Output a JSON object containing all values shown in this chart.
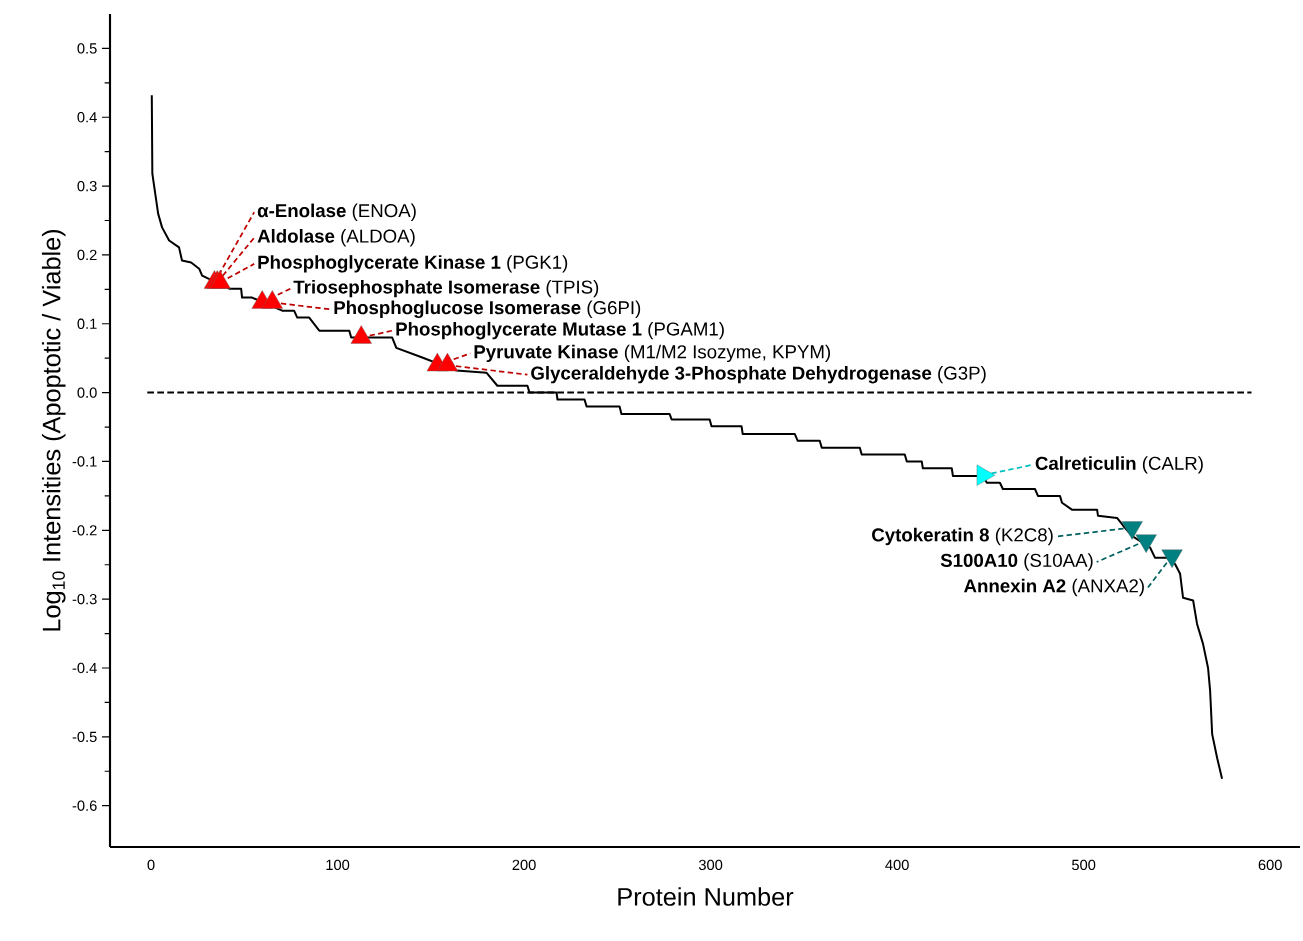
{
  "chart_data": {
    "type": "line",
    "xlabel": "Protein Number",
    "ylabel": "Log$_{10}$ Intensities (Apoptotic / Viable)",
    "xlim": [
      -22,
      616
    ],
    "ylim": [
      -0.66,
      0.55
    ],
    "xticks": [
      0,
      100,
      200,
      300,
      400,
      500,
      600
    ],
    "yticks": [
      0.5,
      0.4,
      0.3,
      0.2,
      0.1,
      {
        "value": 0,
        "label": "0.0"
      },
      -0.1,
      -0.2,
      -0.3,
      -0.4,
      -0.5,
      -0.6
    ],
    "series": [
      {
        "color": "#000000",
        "line_style": "dashed",
        "marker": "none",
        "x": [
          -2,
          590
        ],
        "values": [
          0,
          0
        ]
      },
      {
        "color": "#000000",
        "line_style": "solid",
        "marker": "none",
        "x": [
          0.4,
          0.7,
          3.8,
          5.9,
          9.7,
          15.0,
          16.6,
          21.5,
          25.8,
          27.4,
          41.9,
          48.3,
          48.8,
          54.2,
          70.3,
          76.7,
          78.4,
          84.8,
          90.2,
          106.3,
          107.3,
          129.3,
          131.5,
          145.4,
          163.7,
          179.8,
          185.7,
          201.8,
          202.9,
          217.4,
          217.9,
          232.4,
          233.5,
          251.2,
          252.2,
          278.0,
          279.1,
          299.5,
          300.5,
          316.6,
          317.2,
          345.1,
          346.7,
          358.5,
          359.6,
          380.0,
          381.0,
          404.1,
          405.2,
          413.2,
          413.8,
          429.3,
          429.9,
          446.0,
          448.1,
          455.1,
          456.7,
          473.9,
          475.5,
          487.3,
          488.4,
          493.7,
          507.2,
          507.7,
          517.9,
          521.1,
          525.9,
          535.6,
          538.3,
          544.7,
          549.0,
          551.7,
          553.3,
          558.7,
          560.8,
          564.0,
          566.7,
          567.8,
          568.9,
          571.6,
          574.2
        ],
        "values": [
          0.432,
          0.318,
          0.26,
          0.24,
          0.221,
          0.211,
          0.192,
          0.189,
          0.18,
          0.17,
          0.151,
          0.151,
          0.138,
          0.138,
          0.119,
          0.119,
          0.109,
          0.109,
          0.09,
          0.09,
          0.08,
          0.08,
          0.065,
          0.051,
          0.032,
          0.029,
          0.01,
          0.01,
          0.0,
          0.0,
          -0.01,
          -0.01,
          -0.02,
          -0.02,
          -0.031,
          -0.031,
          -0.039,
          -0.039,
          -0.049,
          -0.049,
          -0.06,
          -0.06,
          -0.07,
          -0.07,
          -0.08,
          -0.08,
          -0.09,
          -0.09,
          -0.1,
          -0.1,
          -0.11,
          -0.11,
          -0.121,
          -0.121,
          -0.131,
          -0.131,
          -0.14,
          -0.14,
          -0.15,
          -0.15,
          -0.16,
          -0.17,
          -0.17,
          -0.179,
          -0.182,
          -0.193,
          -0.208,
          -0.225,
          -0.24,
          -0.24,
          -0.249,
          -0.263,
          -0.298,
          -0.302,
          -0.336,
          -0.365,
          -0.4,
          -0.433,
          -0.496,
          -0.531,
          -0.561
        ]
      },
      {
        "type": "scatter",
        "color": "#ff0000",
        "marker": "triangle",
        "x": [
          34,
          35.5,
          37,
          59.6,
          65,
          112.7,
          153.5,
          158.9
        ],
        "values": [
          0.16,
          0.16,
          0.16,
          0.131,
          0.131,
          0.08,
          0.04,
          0.04
        ]
      },
      {
        "type": "scatter",
        "color": "#00ffff",
        "marker": "triangle",
        "x": [
          446
        ],
        "values": [
          -0.12
        ]
      },
      {
        "type": "scatter",
        "color": "#008080",
        "marker": "triangle",
        "x": [
          526,
          533.5,
          547.4
        ],
        "values": [
          -0.196,
          -0.215,
          -0.237
        ]
      }
    ],
    "annotations": [
      {
        "text": "**α-Enolase** (ENOA)",
        "x": 34,
        "y": 0.16
      },
      {
        "text": "**Aldolase** (ALDOA)",
        "x": 35.5,
        "y": 0.16
      },
      {
        "text": "**Phosphoglycerate Kinase 1** (PGK1)",
        "x": 37,
        "y": 0.16
      },
      {
        "text": "**Triosephosphate Isomerase** (TPIS)",
        "x": 59.6,
        "y": 0.131
      },
      {
        "text": "**Phosphoglucose Isomerase** (G6PI)",
        "x": 65,
        "y": 0.131
      },
      {
        "text": "**Phosphoglycerate Mutase 1** (PGAM1)",
        "x": 112.7,
        "y": 0.08
      },
      {
        "text": "**Pyruvate Kinase** (M1/M2 Isozyme, KPYM)",
        "x": 153.5,
        "y": 0.04
      },
      {
        "text": "**Glyceraldehyde 3-Phosphate Dehydrogenase** (G3P)",
        "x": 158.9,
        "y": 0.04
      },
      {
        "text": "**Calreticulin** (CALR)",
        "x": 446,
        "y": -0.12
      },
      {
        "text": "**Cytokeratin 8** (K2C8)",
        "x": 526,
        "y": -0.196
      },
      {
        "text": "**S100A10** (S10AA)",
        "x": 533.5,
        "y": -0.215
      },
      {
        "text": "**Annexin A2** (ANXA2)",
        "x": 547.4,
        "y": -0.237
      }
    ]
  }
}
